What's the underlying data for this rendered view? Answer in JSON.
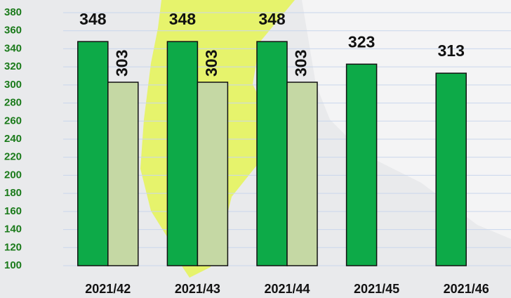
{
  "chart_data": {
    "type": "bar",
    "categories": [
      "2021/42",
      "2021/43",
      "2021/44",
      "2021/45",
      "2021/46"
    ],
    "series": [
      {
        "color": "#0daa48",
        "values": [
          348,
          348,
          348,
          323,
          313
        ]
      },
      {
        "color": "#c5d8a4",
        "values": [
          303,
          303,
          303,
          null,
          null
        ]
      }
    ],
    "ylim": [
      100,
      380
    ],
    "yticks": [
      100,
      120,
      140,
      160,
      180,
      200,
      220,
      240,
      260,
      280,
      300,
      320,
      340,
      360,
      380
    ],
    "grid": true
  }
}
